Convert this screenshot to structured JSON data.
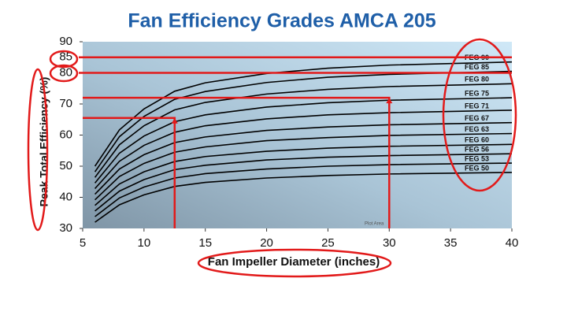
{
  "chart_data": {
    "type": "line",
    "title": "Fan Efficiency Grades AMCA 205",
    "x_label": "Fan Impeller Diameter (inches)",
    "y_label": "Peak Total Efficiency (%)",
    "annotation": "Plot Area",
    "xlim": [
      5,
      40
    ],
    "xticks": [
      5,
      10,
      15,
      20,
      25,
      30,
      35,
      40
    ],
    "ylim": [
      30,
      90
    ],
    "yticks": [
      30,
      40,
      50,
      60,
      70,
      80,
      85,
      90
    ],
    "x": [
      6,
      8,
      10,
      12.5,
      15,
      20,
      25,
      30,
      40
    ],
    "line_color": "#000000",
    "highlight_color": "#e21a1a",
    "reference_lines": [
      85,
      80
    ],
    "markers": [
      {
        "x": 12.5,
        "y": 65.5
      },
      {
        "x": 30,
        "y": 72
      }
    ],
    "series": [
      {
        "name": "FEG 90",
        "values": [
          50,
          61.7,
          68.4,
          74.1,
          76.8,
          79.8,
          81.5,
          82.5,
          83.5
        ]
      },
      {
        "name": "FEG 85",
        "values": [
          48.2,
          59.5,
          66.0,
          71.5,
          74.0,
          76.9,
          78.6,
          79.5,
          80.5
        ]
      },
      {
        "name": "FEG 80",
        "values": [
          46.4,
          56.9,
          63.0,
          68.1,
          70.5,
          73.2,
          74.7,
          75.6,
          76.5
        ]
      },
      {
        "name": "FEG 75",
        "values": [
          44.6,
          54.2,
          59.7,
          64.3,
          66.5,
          69.0,
          70.4,
          71.2,
          72
        ]
      },
      {
        "name": "FEG 71",
        "values": [
          42.8,
          51.6,
          56.7,
          60.9,
          63.0,
          65.2,
          66.5,
          67.2,
          68
        ]
      },
      {
        "name": "FEG 67",
        "values": [
          41,
          49.1,
          53.7,
          57.6,
          59.4,
          61.5,
          62.6,
          63.3,
          64
        ]
      },
      {
        "name": "FEG 63",
        "values": [
          39.2,
          46.7,
          50.9,
          54.5,
          56.2,
          58.2,
          59.2,
          59.9,
          60.5
        ]
      },
      {
        "name": "FEG 60",
        "values": [
          37.4,
          44.3,
          48.2,
          51.5,
          53.1,
          54.8,
          55.8,
          56.4,
          57
        ]
      },
      {
        "name": "FEG 56",
        "values": [
          35.6,
          42.0,
          45.7,
          48.9,
          50.3,
          52.0,
          52.9,
          53.4,
          54
        ]
      },
      {
        "name": "FEG 53",
        "values": [
          33.8,
          39.8,
          43.3,
          46.2,
          47.6,
          49.1,
          50.0,
          50.5,
          51
        ]
      },
      {
        "name": "FEG 50",
        "values": [
          32,
          37.6,
          40.8,
          43.5,
          44.8,
          46.2,
          47.0,
          47.5,
          48
        ]
      }
    ]
  }
}
